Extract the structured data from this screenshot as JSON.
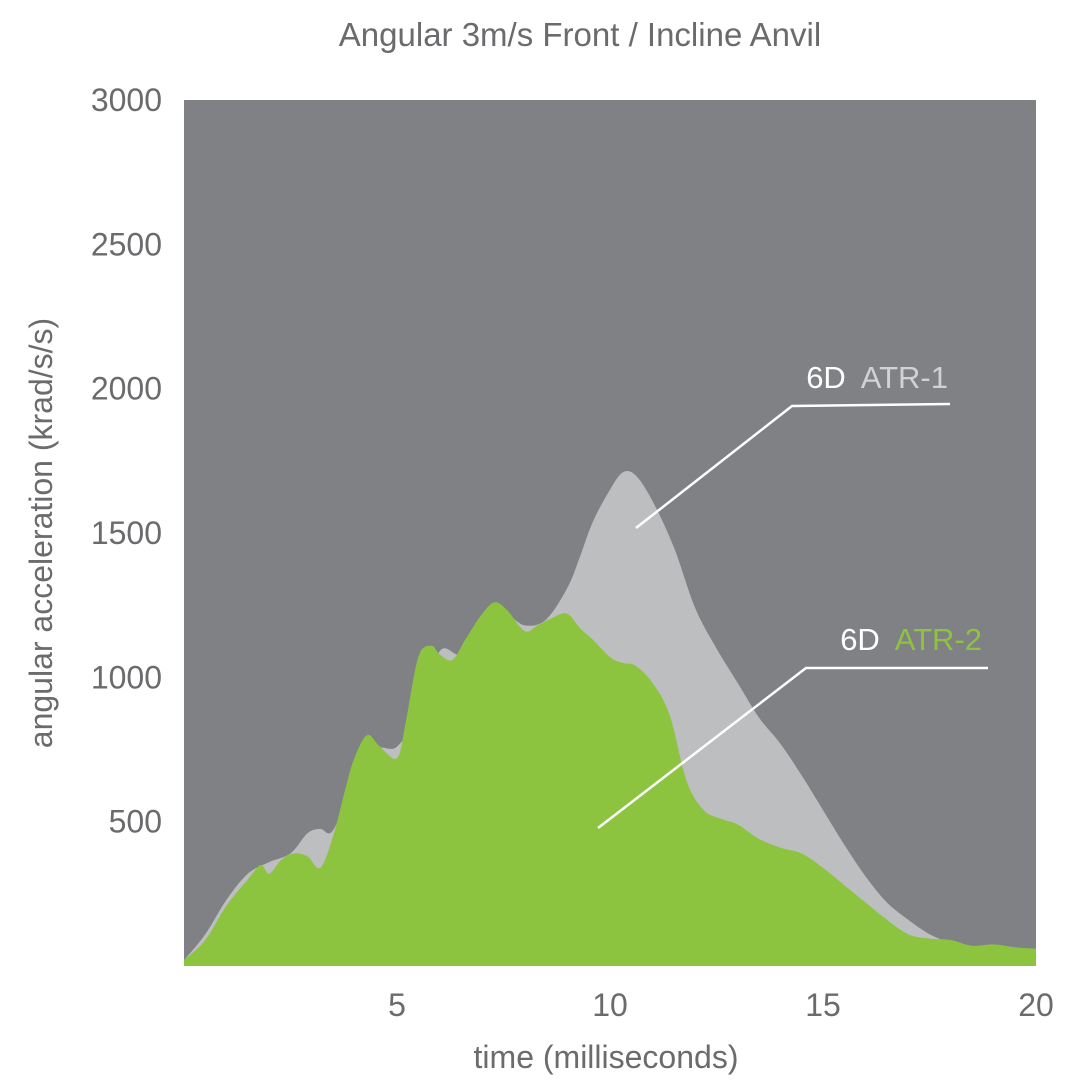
{
  "chart_data": {
    "type": "area",
    "title": "Angular 3m/s Front / Incline Anvil",
    "xlabel": "time (milliseconds)",
    "ylabel": "angular acceleration (krad/s/s)",
    "xlim": [
      0,
      20
    ],
    "ylim": [
      0,
      3000
    ],
    "xticks": [
      "5",
      "10",
      "15",
      "20"
    ],
    "yticks": [
      "500",
      "1000",
      "1500",
      "2000",
      "2500",
      "3000"
    ],
    "grid": false,
    "background_color": "#808184",
    "series": [
      {
        "name": "ATR-1",
        "label_prefix": "6D",
        "color": "#bdbec0",
        "label_color": "#d1d2d4",
        "x": [
          0,
          0.5,
          1.0,
          1.5,
          2.0,
          2.5,
          2.9,
          3.2,
          3.5,
          4.0,
          4.5,
          5.0,
          5.5,
          6.0,
          6.5,
          7.0,
          7.5,
          8.0,
          8.5,
          9.0,
          9.3,
          9.6,
          10.0,
          10.3,
          10.6,
          11.0,
          11.5,
          12.0,
          12.5,
          13.0,
          13.5,
          14.0,
          14.5,
          15.0,
          15.5,
          16.0,
          16.5,
          17.0,
          17.5,
          18.0,
          18.5,
          19.0,
          19.5,
          20.0
        ],
        "y": [
          20,
          110,
          230,
          320,
          360,
          390,
          460,
          475,
          470,
          640,
          750,
          760,
          880,
          1090,
          1080,
          1170,
          1220,
          1180,
          1200,
          1310,
          1420,
          1540,
          1650,
          1710,
          1700,
          1610,
          1450,
          1240,
          1100,
          980,
          860,
          770,
          660,
          540,
          420,
          310,
          220,
          160,
          110,
          80,
          60,
          50,
          45,
          40
        ]
      },
      {
        "name": "ATR-2",
        "label_prefix": "6D",
        "color": "#8cc43f",
        "label_color": "#8cc43f",
        "x": [
          0,
          0.5,
          1.0,
          1.5,
          1.8,
          2.0,
          2.3,
          2.6,
          2.9,
          3.2,
          3.5,
          3.8,
          4.0,
          4.3,
          4.6,
          5.0,
          5.2,
          5.5,
          5.8,
          6.0,
          6.3,
          6.6,
          7.0,
          7.3,
          7.6,
          8.0,
          8.3,
          8.7,
          9.0,
          9.3,
          9.6,
          10.0,
          10.3,
          10.6,
          11.0,
          11.4,
          11.8,
          12.2,
          12.6,
          13.0,
          13.5,
          14.0,
          14.5,
          15.0,
          15.5,
          16.0,
          16.5,
          17.0,
          17.5,
          18.0,
          18.5,
          19.0,
          19.5,
          20.0
        ],
        "y": [
          20,
          90,
          210,
          300,
          350,
          320,
          370,
          390,
          380,
          340,
          450,
          620,
          720,
          800,
          760,
          720,
          840,
          1070,
          1110,
          1080,
          1060,
          1130,
          1220,
          1260,
          1230,
          1160,
          1180,
          1210,
          1220,
          1170,
          1130,
          1070,
          1050,
          1040,
          980,
          870,
          640,
          540,
          510,
          490,
          440,
          410,
          390,
          340,
          280,
          220,
          160,
          110,
          95,
          90,
          70,
          75,
          65,
          60
        ]
      }
    ]
  }
}
